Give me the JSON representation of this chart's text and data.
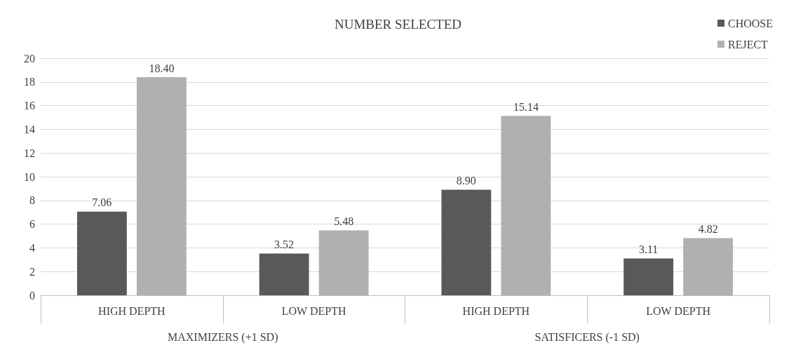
{
  "chart_data": {
    "type": "bar",
    "title": "NUMBER SELECTED",
    "categories": [
      "HIGH DEPTH",
      "LOW DEPTH",
      "HIGH DEPTH",
      "LOW DEPTH"
    ],
    "series": [
      {
        "name": "CHOOSE",
        "color": "#595959",
        "values": [
          7.06,
          3.52,
          8.9,
          3.11
        ]
      },
      {
        "name": "REJECT",
        "color": "#b0b0b0",
        "values": [
          18.4,
          5.48,
          15.14,
          4.82
        ]
      }
    ],
    "value_labels": [
      [
        "7.06",
        "3.52",
        "8.90",
        "3.11"
      ],
      [
        "18.40",
        "5.48",
        "15.14",
        "4.82"
      ]
    ],
    "annotations": [
      "MAXIMIZERS (+1 SD)",
      "SATISFICERS (-1 SD)"
    ],
    "ylim": [
      0,
      20
    ],
    "yticks": [
      0,
      2,
      4,
      6,
      8,
      10,
      12,
      14,
      16,
      18,
      20
    ],
    "grid": "y",
    "legend": "top right"
  }
}
